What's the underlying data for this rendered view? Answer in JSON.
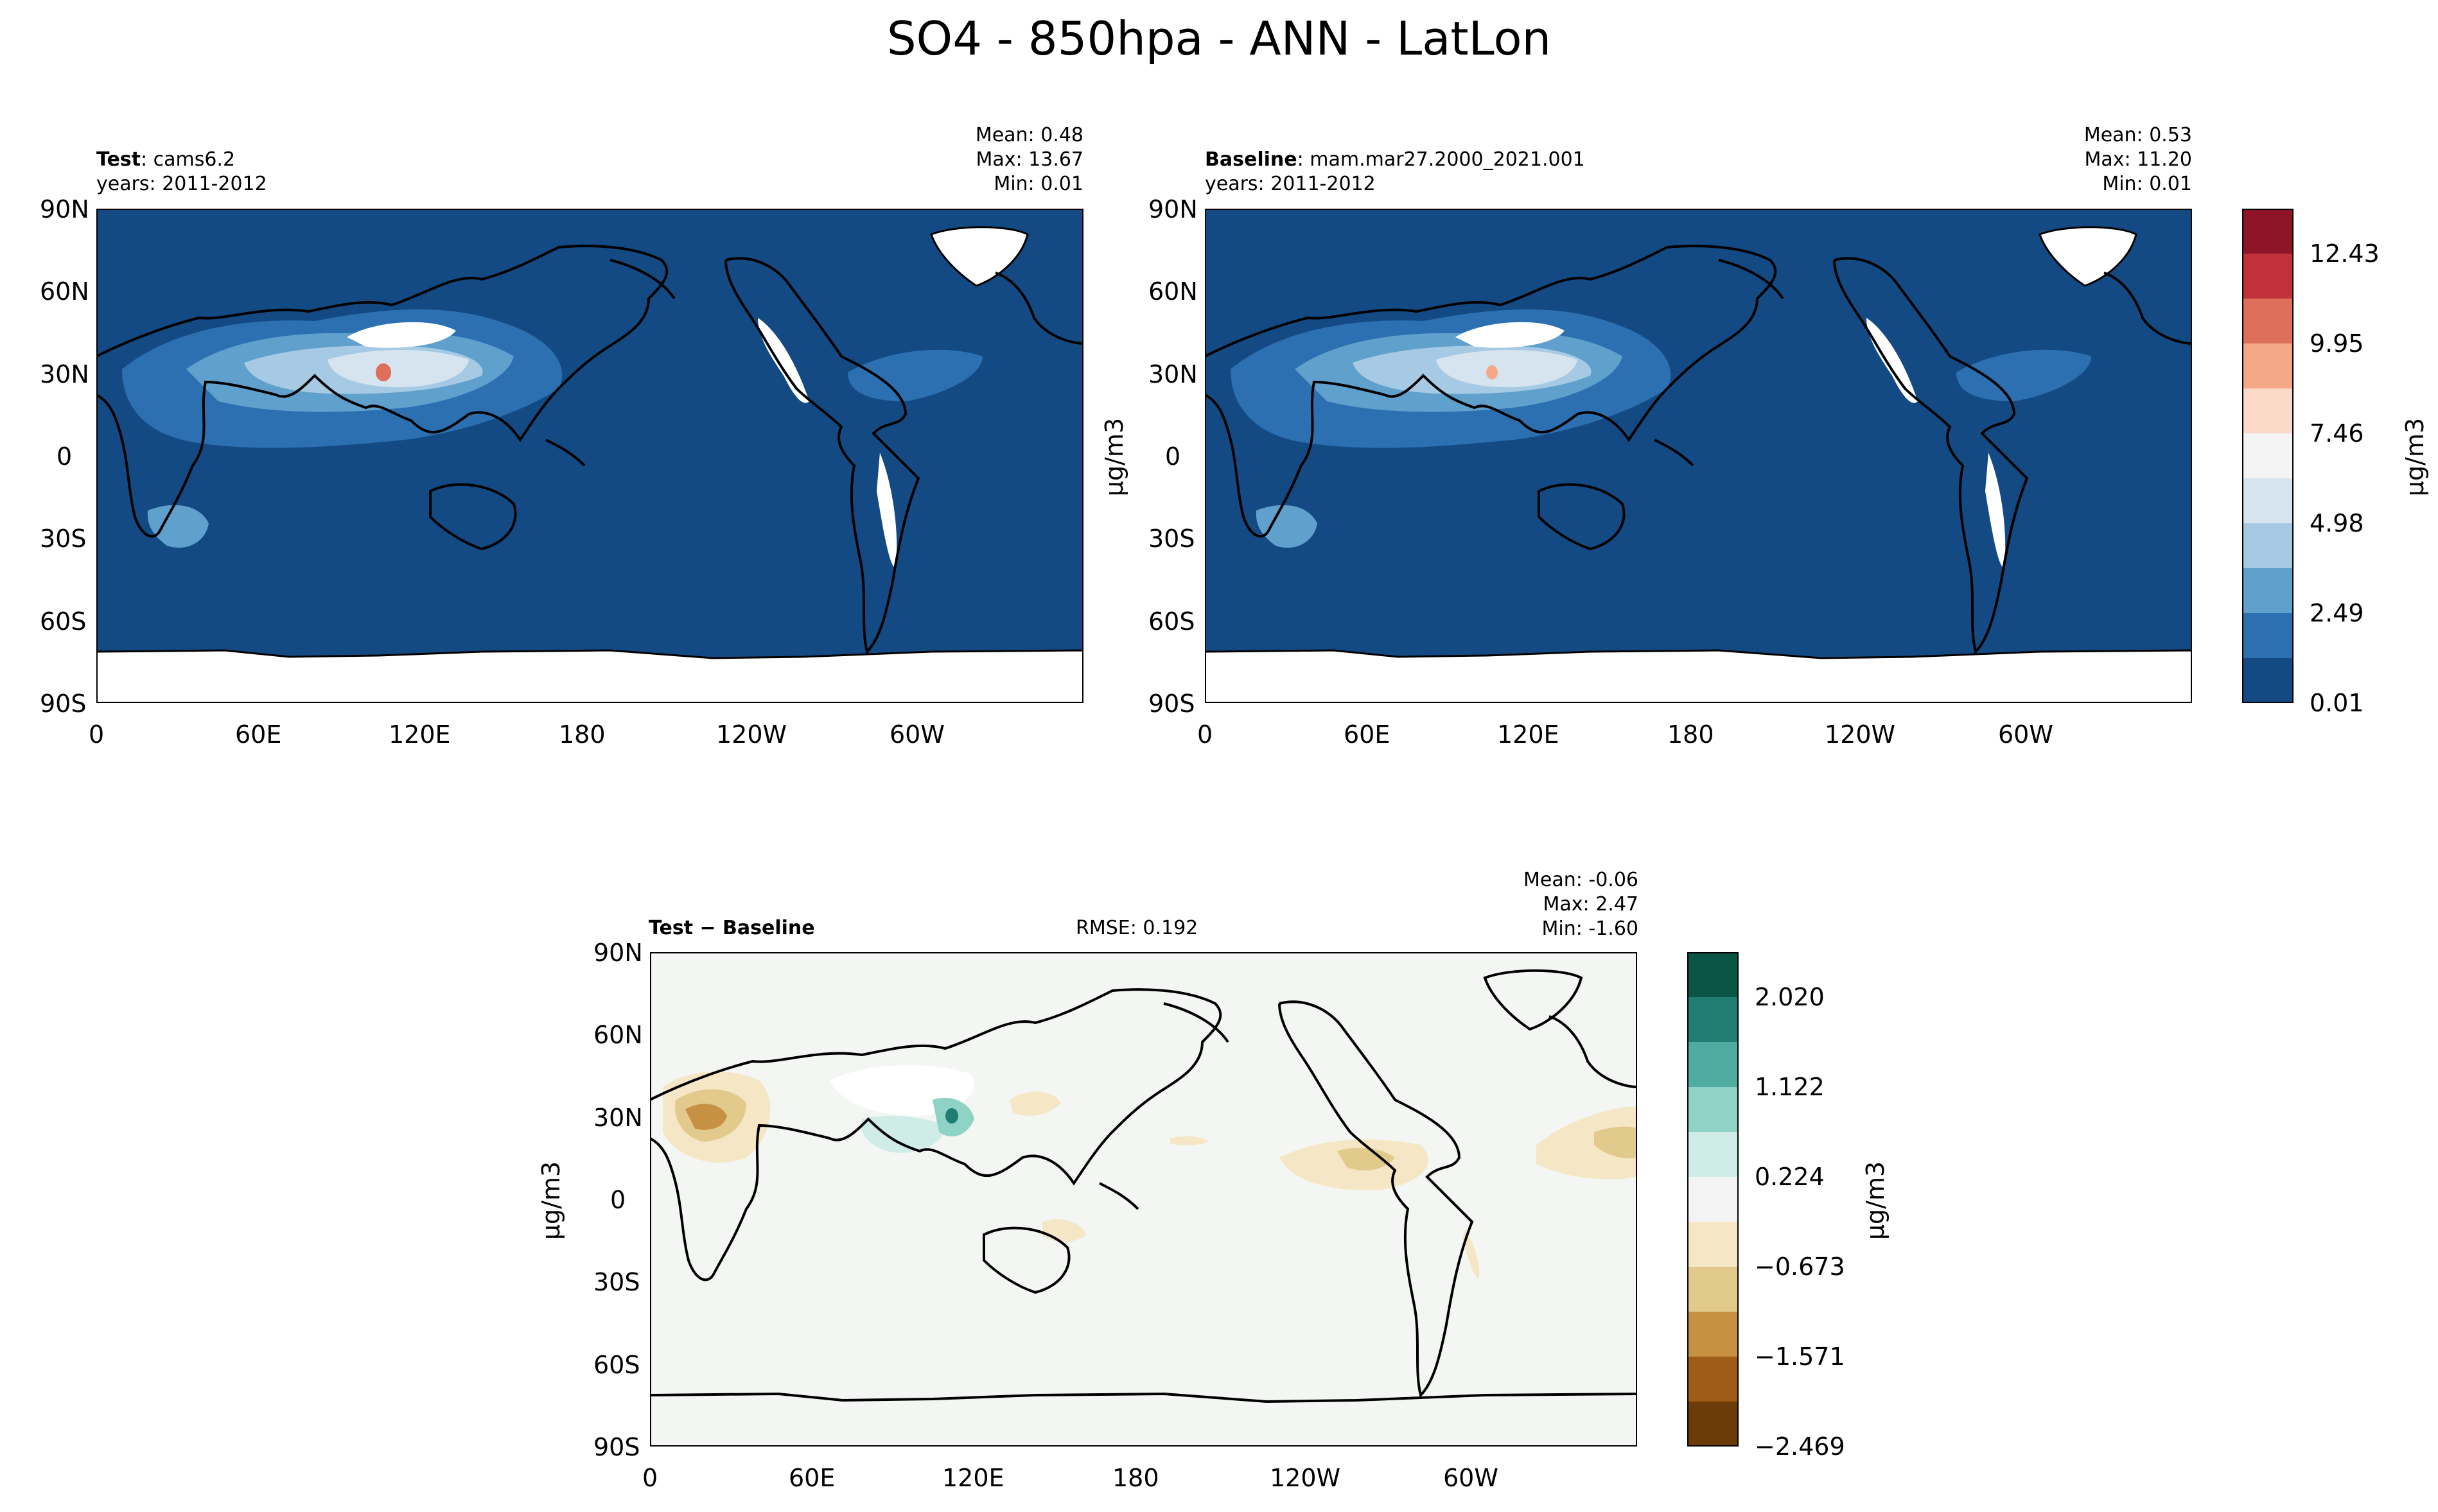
{
  "figure_title": "SO4 - 850hpa - ANN - LatLon",
  "panels": {
    "test": {
      "label_bold": "Test",
      "label_rest": ": cams6.2",
      "years": "years: 2011-2012",
      "mean": "Mean:  0.48",
      "max": "Max: 13.67",
      "min": "Min:  0.01"
    },
    "baseline": {
      "label_bold": "Baseline",
      "label_rest": ": mam.mar27.2000_2021.001",
      "years": "years: 2011-2012",
      "mean": "Mean:  0.53",
      "max": "Max: 11.20",
      "min": "Min:  0.01"
    },
    "diff": {
      "label_bold": "Test − Baseline",
      "rmse": "RMSE: 0.192",
      "mean": "Mean: -0.06",
      "max": "Max:  2.47",
      "min": "Min: -1.60"
    }
  },
  "axes": {
    "lat_ticks": [
      "90N",
      "60N",
      "30N",
      "0",
      "30S",
      "60S",
      "90S"
    ],
    "lon_ticks": [
      "0",
      "60E",
      "120E",
      "180",
      "120W",
      "60W"
    ],
    "units_label": "μg/m3"
  },
  "colorbars": {
    "main": {
      "tick_labels": [
        "12.43",
        "9.95",
        "7.46",
        "4.98",
        "2.49",
        "0.01"
      ],
      "colors_top_to_bottom": [
        "#8e1527",
        "#c1313a",
        "#de6f5b",
        "#f4a886",
        "#fbd9c8",
        "#f4f4f4",
        "#d6e4f0",
        "#a6cae3",
        "#5fa0cd",
        "#2c70b2",
        "#144a84"
      ]
    },
    "diff": {
      "tick_labels": [
        "2.020",
        "1.122",
        "0.224",
        "−0.673",
        "−1.571",
        "−2.469"
      ],
      "colors_top_to_bottom": [
        "#0b5547",
        "#1f7e71",
        "#4eada0",
        "#8fd3c6",
        "#cfece6",
        "#f4f4f4",
        "#f5e7c6",
        "#e2c98c",
        "#c69143",
        "#9e5c17",
        "#6b3c08"
      ]
    }
  },
  "chart_data": [
    {
      "type": "heatmap",
      "title": "Test: cams6.2",
      "x_ticks": [
        "0",
        "60E",
        "120E",
        "180",
        "120W",
        "60W"
      ],
      "y_ticks": [
        "90N",
        "60N",
        "30N",
        "0",
        "30S",
        "60S",
        "90S"
      ],
      "colorbar_ticks": [
        12.43,
        9.95,
        7.46,
        4.98,
        2.49,
        0.01
      ],
      "stats": {
        "mean": 0.48,
        "max": 13.67,
        "min": 0.01
      }
    },
    {
      "type": "heatmap",
      "title": "Baseline: mam.mar27.2000_2021.001",
      "x_ticks": [
        "0",
        "60E",
        "120E",
        "180",
        "120W",
        "60W"
      ],
      "y_ticks": [
        "90N",
        "60N",
        "30N",
        "0",
        "30S",
        "60S",
        "90S"
      ],
      "colorbar_ticks": [
        12.43,
        9.95,
        7.46,
        4.98,
        2.49,
        0.01
      ],
      "stats": {
        "mean": 0.53,
        "max": 11.2,
        "min": 0.01
      }
    },
    {
      "type": "heatmap",
      "title": "Test − Baseline",
      "x_ticks": [
        "0",
        "60E",
        "120E",
        "180",
        "120W",
        "60W"
      ],
      "y_ticks": [
        "90N",
        "60N",
        "30N",
        "0",
        "30S",
        "60S",
        "90S"
      ],
      "colorbar_ticks": [
        2.02,
        1.122,
        0.224,
        -0.673,
        -1.571,
        -2.469
      ],
      "stats": {
        "mean": -0.06,
        "max": 2.47,
        "min": -1.6,
        "rmse": 0.192
      }
    }
  ]
}
